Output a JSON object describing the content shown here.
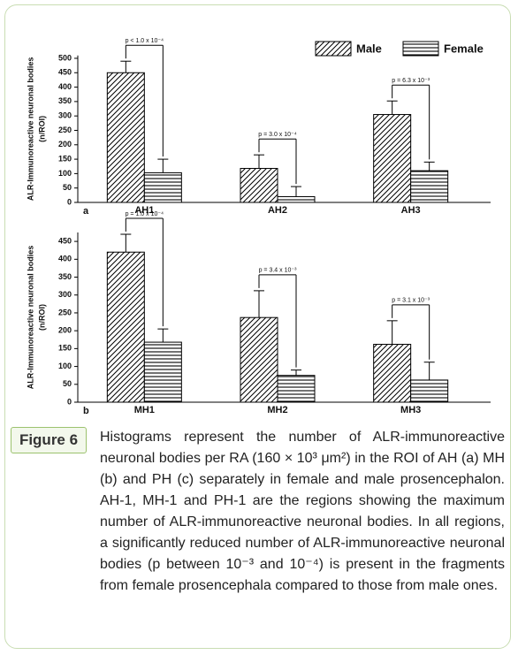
{
  "chart_data": [
    {
      "type": "bar",
      "panel": "a",
      "ylabel": [
        "ALR-Immunoreactive neuronal bodies",
        "(n/ROI)"
      ],
      "categories": [
        "AH1",
        "AH2",
        "AH3"
      ],
      "series": [
        {
          "name": "Male",
          "color": "#000000",
          "pattern": "diagonal",
          "values": [
            450,
            118,
            305
          ],
          "errors": [
            40,
            47,
            47
          ]
        },
        {
          "name": "Female",
          "color": "#000000",
          "pattern": "horizontal",
          "values": [
            103,
            20,
            110
          ],
          "errors": [
            47,
            35,
            30
          ]
        }
      ],
      "annotations": [
        "p < 1.0 x 10⁻⁴",
        "p = 3.0 x 10⁻⁴",
        "p = 6.3 x 10⁻³"
      ],
      "ylim": [
        0,
        510
      ],
      "yticks": [
        0,
        50,
        100,
        150,
        200,
        250,
        300,
        350,
        400,
        450,
        500
      ],
      "legend": "top-right"
    },
    {
      "type": "bar",
      "panel": "b",
      "ylabel": [
        "ALR-Immunoreactive neuronal bodies",
        "(n/ROI)"
      ],
      "categories": [
        "MH1",
        "MH2",
        "MH3"
      ],
      "series": [
        {
          "color": "#000000",
          "pattern": "diagonal",
          "values": [
            420,
            237,
            162
          ],
          "errors": [
            50,
            75,
            66
          ]
        },
        {
          "color": "#000000",
          "pattern": "horizontal",
          "values": [
            168,
            75,
            62
          ],
          "errors": [
            37,
            15,
            50
          ]
        }
      ],
      "annotations": [
        "p = 1.0 x 10⁻⁴",
        "p = 3.4 x 10⁻³",
        "p = 3.1 x 10⁻³"
      ],
      "ylim": [
        0,
        475
      ],
      "yticks": [
        0,
        50,
        100,
        150,
        200,
        250,
        300,
        350,
        400,
        450
      ]
    }
  ],
  "caption": {
    "label": "Figure 6",
    "text": "Histograms represent the number of ALR-immunoreactive neuronal bodies per RA (160 × 10³ μm²) in the ROI of AH (a) MH (b) and PH (c) separately in female and male prosencephalon. AH-1, MH-1 and PH-1 are the regions showing the maximum number of ALR-immunoreactive neuronal bodies. In all regions, a significantly reduced number of ALR-immunoreactive neuronal bodies (p between 10⁻³ and 10⁻⁴) is present in the fragments from female prosencephala compared to those from male ones."
  }
}
